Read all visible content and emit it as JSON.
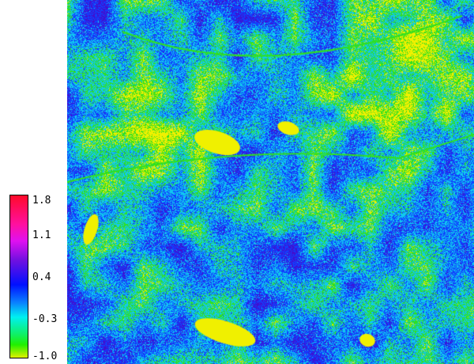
{
  "colorbar": {
    "labels": [
      "1.8",
      "1.1",
      "0.4",
      "-0.3",
      "-1.0"
    ],
    "range": [
      -1.0,
      1.8
    ],
    "colors": [
      "#ff0a2a",
      "#e010f0",
      "#0010ff",
      "#00f0f0",
      "#20f000",
      "#e0f000"
    ]
  },
  "map": {
    "palette": {
      "low": "#f0f000",
      "green": "#30e020",
      "cyan": "#10c8f0",
      "blue": "#1040ff",
      "violet": "#4010d0"
    }
  }
}
